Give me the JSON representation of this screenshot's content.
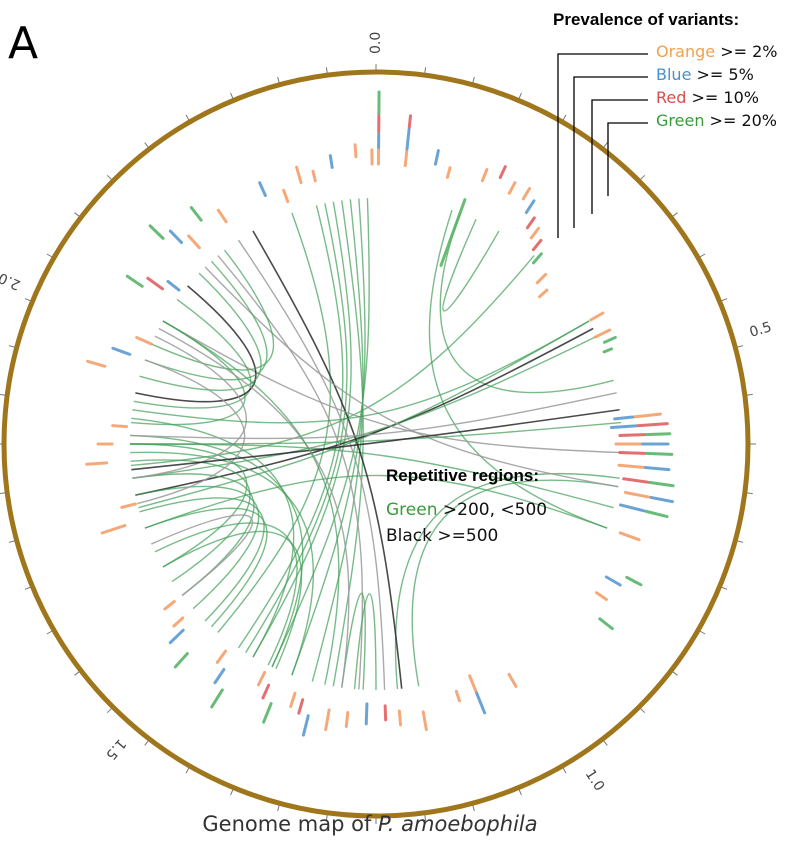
{
  "panel_label": "A",
  "axis_ticks": [
    {
      "label": "0.0"
    },
    {
      "label": "0.5"
    },
    {
      "label": "1.0"
    },
    {
      "label": "1.5"
    },
    {
      "label": "2.0"
    }
  ],
  "legend_variants": {
    "title": "Prevalence of variants:",
    "items": [
      {
        "color_name": "Orange",
        "rule": ">= 2%",
        "color": "#f0a050"
      },
      {
        "color_name": "Blue",
        "rule": ">= 5%",
        "color": "#4a90c8"
      },
      {
        "color_name": "Red",
        "rule": ">= 10%",
        "color": "#d84c4c"
      },
      {
        "color_name": "Green",
        "rule": ">= 20%",
        "color": "#3a9a3a"
      }
    ]
  },
  "legend_repeats": {
    "title": "Repetitive regions:",
    "items": [
      {
        "color_name": "Green",
        "rule": ">200, <500",
        "color": "#4aa060"
      },
      {
        "color_name": "Black",
        "rule": ">=500",
        "color": "#222222"
      }
    ]
  },
  "caption": {
    "prefix": "Genome map of ",
    "species": "P. amoebophila"
  },
  "colors": {
    "ring": "#a0761c",
    "orange": "#f4a06a",
    "blue": "#5b9bd0",
    "red": "#e06060",
    "green": "#59b46a",
    "link_green": "#3f9e56",
    "link_grey": "#9a9a9a",
    "link_black": "#2a2a2a"
  }
}
